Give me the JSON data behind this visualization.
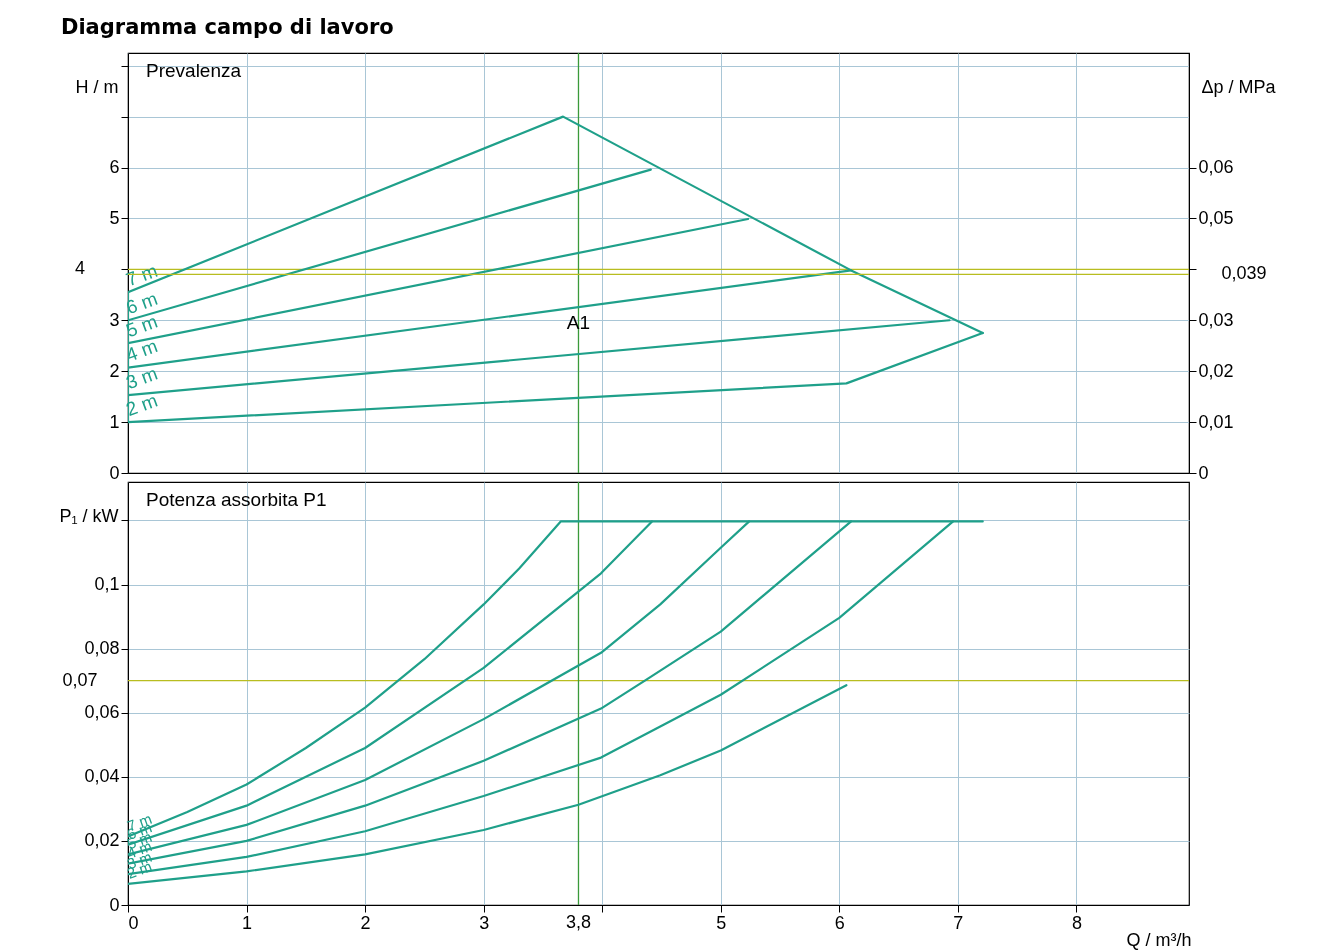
{
  "chart_data": [
    {
      "type": "line",
      "title": "Diagramma campo di lavoro",
      "subtitle": "Prevalenza",
      "ylabel": "H / m",
      "y2label": "Δp / MPa",
      "xlim": [
        0,
        8.95
      ],
      "xticks": [
        0,
        1,
        2,
        3,
        4,
        5,
        6,
        7,
        8
      ],
      "ylim": [
        0,
        8.25
      ],
      "yticks": [
        0,
        1,
        2,
        3,
        {
          "value": 4,
          "label": null
        },
        5,
        6,
        {
          "value": 7,
          "label": null
        },
        {
          "value": 8,
          "label": null
        }
      ],
      "y2lim": [
        0,
        0.0825
      ],
      "y2ticks": [
        0,
        {
          "value": 0.01,
          "label": "0,01"
        },
        {
          "value": 0.02,
          "label": "0,02"
        },
        {
          "value": 0.03,
          "label": "0,03"
        },
        {
          "value": 0.04,
          "label": null
        },
        {
          "value": 0.05,
          "label": "0,05"
        },
        {
          "value": 0.06,
          "label": "0,06"
        }
      ],
      "tick_labels": "y",
      "grid": true,
      "series": [
        {
          "name": "7 m",
          "color": "#1fa08a",
          "x": [
            0,
            3.67,
            6.1,
            7.21
          ],
          "values": [
            3.55,
            7.0,
            3.98,
            2.75
          ]
        },
        {
          "name": "6 m",
          "color": "#1fa08a",
          "x": [
            0,
            4.41
          ],
          "values": [
            3.0,
            5.96
          ]
        },
        {
          "name": "5 m",
          "color": "#1fa08a",
          "x": [
            0,
            5.23
          ],
          "values": [
            2.55,
            4.99
          ]
        },
        {
          "name": "4 m",
          "color": "#1fa08a",
          "x": [
            0,
            6.1
          ],
          "values": [
            2.07,
            3.98
          ]
        },
        {
          "name": "3 m",
          "color": "#1fa08a",
          "x": [
            0,
            6.93
          ],
          "values": [
            1.53,
            3.0
          ]
        },
        {
          "name": "2 m",
          "color": "#1fa08a",
          "x": [
            0,
            6.06,
            7.21
          ],
          "values": [
            1.0,
            1.76,
            2.75
          ]
        },
        {
          "color": "#1fa08a",
          "x": [
            0,
            0
          ],
          "values": [
            1.0,
            3.55
          ]
        }
      ],
      "ref_lines": [
        {
          "axis": "y",
          "value": 4,
          "label": "4",
          "color": "#b8bd20"
        },
        {
          "axis": "y2",
          "value": 0.039,
          "label": "0,039",
          "color": "#b8bd20"
        },
        {
          "axis": "x",
          "value": 3.8,
          "color": "#3a9a3a"
        }
      ],
      "annotations": [
        {
          "text": "A1",
          "x": 3.8,
          "y": 4
        }
      ]
    },
    {
      "type": "line",
      "subtitle": "Potenza assorbita P1",
      "xlabel": "Q / m³/h",
      "ylabel": "P₁ / kW",
      "xlim": [
        0,
        8.95
      ],
      "xticks": [
        0,
        1,
        2,
        3,
        {
          "value": 4,
          "label": null
        },
        5,
        6,
        7,
        8
      ],
      "ylim": [
        0,
        0.132
      ],
      "yticks": [
        0,
        {
          "value": 0.02,
          "label": "0,02"
        },
        {
          "value": 0.04,
          "label": "0,04"
        },
        {
          "value": 0.06,
          "label": "0,06"
        },
        {
          "value": 0.08,
          "label": "0,08"
        },
        {
          "value": 0.1,
          "label": "0,1"
        },
        {
          "value": 0.12,
          "label": null
        }
      ],
      "grid": true,
      "series": [
        {
          "name": "7 m",
          "color": "#1fa08a",
          "x": [
            0,
            0.5,
            1,
            1.5,
            2,
            2.5,
            3,
            3.3,
            3.65,
            7.21
          ],
          "values": [
            0.0214,
            0.029,
            0.0376,
            0.049,
            0.0616,
            0.0767,
            0.0938,
            0.105,
            0.1197,
            0.1197
          ]
        },
        {
          "name": "6 m",
          "color": "#1fa08a",
          "x": [
            0,
            1,
            2,
            3,
            3.99,
            4.42
          ],
          "values": [
            0.0188,
            0.031,
            0.049,
            0.074,
            0.1035,
            0.1197
          ]
        },
        {
          "name": "5 m",
          "color": "#1fa08a",
          "x": [
            0,
            1,
            2,
            3,
            3.99,
            4.49,
            5,
            5.24
          ],
          "values": [
            0.0158,
            0.025,
            0.039,
            0.058,
            0.0787,
            0.0938,
            0.1115,
            0.1197
          ]
        },
        {
          "name": "4 m",
          "color": "#1fa08a",
          "x": [
            0,
            1,
            2,
            3,
            3.99,
            4.36,
            5,
            6,
            6.1
          ],
          "values": [
            0.0129,
            0.02,
            0.031,
            0.045,
            0.0613,
            0.07,
            0.0853,
            0.1166,
            0.1197
          ]
        },
        {
          "name": "3 m",
          "color": "#1fa08a",
          "x": [
            0,
            1,
            2,
            3,
            3.99,
            4.49,
            5,
            6,
            6.96
          ],
          "values": [
            0.0096,
            0.015,
            0.023,
            0.034,
            0.046,
            0.0557,
            0.0656,
            0.0896,
            0.1197
          ]
        },
        {
          "name": "2 m",
          "color": "#1fa08a",
          "x": [
            0,
            1,
            2,
            3,
            3.8,
            4.49,
            5,
            6.06
          ],
          "values": [
            0.0066,
            0.0105,
            0.0158,
            0.0234,
            0.0313,
            0.0405,
            0.0482,
            0.0686
          ]
        }
      ],
      "ref_lines": [
        {
          "axis": "y",
          "value": 0.07,
          "label": "0,07",
          "color": "#b8bd20"
        },
        {
          "axis": "x",
          "value": 3.8,
          "label": "3,8",
          "color": "#3a9a3a"
        }
      ]
    }
  ]
}
